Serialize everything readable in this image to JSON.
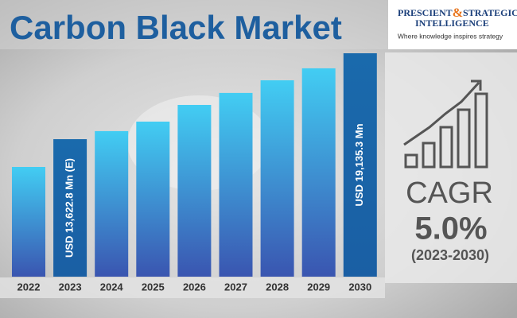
{
  "chart_data": {
    "type": "bar",
    "title": "Carbon Black Market",
    "categories": [
      "2022",
      "2023",
      "2024",
      "2025",
      "2026",
      "2027",
      "2028",
      "2029",
      "2030"
    ],
    "values": [
      11840,
      13622.8,
      14140,
      14750,
      15820,
      16590,
      17400,
      18170,
      19135.3
    ],
    "value_labels": [
      null,
      "USD 13,622.8 Mn (E)",
      null,
      null,
      null,
      null,
      null,
      null,
      "USD 19,135.3 Mn"
    ],
    "color": [
      "#42cdf3",
      "#3a55b0"
    ],
    "highlight_color": [
      "#1a6aac",
      "#1a5fa4"
    ],
    "ylim": [
      4800,
      19135.3
    ]
  },
  "logo": {
    "name_left": "PRESCIENT",
    "name_amp": "&",
    "name_right": "STRATEGIC",
    "name_line2": "INTELLIGENCE",
    "tagline": "Where knowledge inspires strategy"
  },
  "cagr": {
    "label": "CAGR",
    "value": "5.0%",
    "period": "(2023-2030)"
  }
}
